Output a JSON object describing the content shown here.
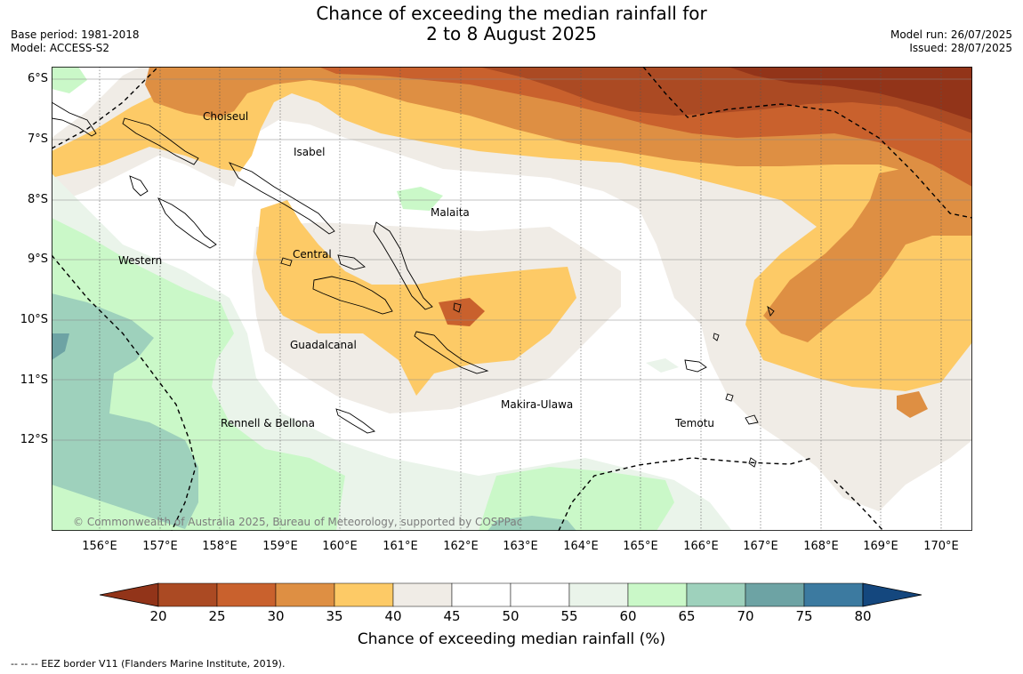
{
  "title_line1": "Chance of exceeding the median rainfall for",
  "title_line2": "2 to 8 August 2025",
  "base_period": "Base period: 1981-2018",
  "model": "Model: ACCESS-S2",
  "model_run": "Model run: 26/07/2025",
  "issued": "Issued: 28/07/2025",
  "longitude_labels": [
    "156°E",
    "157°E",
    "158°E",
    "159°E",
    "160°E",
    "161°E",
    "162°E",
    "163°E",
    "164°E",
    "165°E",
    "166°E",
    "167°E",
    "168°E",
    "169°E",
    "170°E"
  ],
  "latitude_labels": [
    "6°S",
    "7°S",
    "8°S",
    "9°S",
    "10°S",
    "11°S",
    "12°S"
  ],
  "places": {
    "choiseul": "Choiseul",
    "isabel": "Isabel",
    "malaita": "Malaita",
    "western": "Western",
    "central": "Central",
    "guadalcanal": "Guadalcanal",
    "makira_ulawa": "Makira-Ulawa",
    "temotu": "Temotu",
    "rennell_bellona": "Rennell & Bellona"
  },
  "copyright": "© Commonwealth of Australia 2025, Bureau of Meteorology, supported by COSPPac",
  "colorbar": {
    "labels": [
      "20",
      "25",
      "30",
      "35",
      "40",
      "45",
      "50",
      "55",
      "60",
      "65",
      "70",
      "75",
      "80"
    ],
    "colors": [
      "#ab4a23",
      "#c9612d",
      "#de8f43",
      "#fdca66",
      "#f0ece6",
      "#ffffff",
      "#ffffff",
      "#eaf4ea",
      "#caf8c8",
      "#9ed1bc",
      "#6da3a4",
      "#3c7aa0"
    ],
    "under_color": "#923419",
    "over_color": "#14477e",
    "title": "Chance of exceeding median rainfall (%)"
  },
  "footnote": "--  --  -- EEZ border V11 (Flanders Marine Institute, 2019)."
}
